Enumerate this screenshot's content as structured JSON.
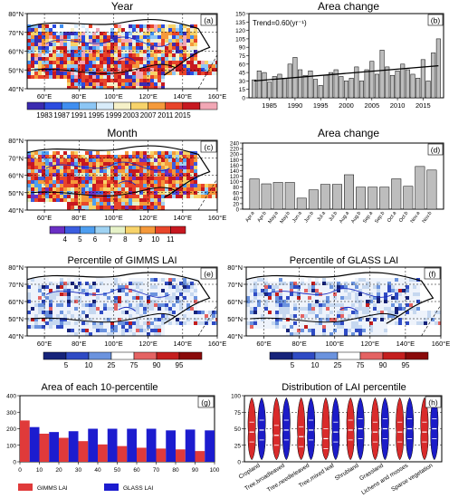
{
  "maps": {
    "lon_ticks": [
      "60°E",
      "80°E",
      "100°E",
      "120°E",
      "140°E",
      "160°E"
    ],
    "lat_ticks": [
      "80°N",
      "70°N",
      "60°N",
      "50°N",
      "40°N"
    ]
  },
  "chart_data": [
    {
      "id": "a",
      "type": "map",
      "panel_label": "(a)",
      "title": "Year",
      "colorbar_labels": [
        "1983",
        "1987",
        "1991",
        "1995",
        "1999",
        "2003",
        "2007",
        "2011",
        "2015"
      ],
      "colors": [
        "#3b2bb0",
        "#2c4ce0",
        "#3f8ef0",
        "#8cc6f5",
        "#d8ecfa",
        "#f6f1c8",
        "#f7d36a",
        "#f59a3b",
        "#e8442a",
        "#c71820",
        "#f2a7b5"
      ]
    },
    {
      "id": "b",
      "type": "bar",
      "panel_label": "(b)",
      "title": "Area change",
      "annotation": "Trend=0.60(yr⁻¹)",
      "x_start": 1982,
      "values": [
        32,
        48,
        45,
        28,
        38,
        42,
        35,
        60,
        72,
        50,
        40,
        48,
        33,
        22,
        40,
        45,
        50,
        38,
        30,
        35,
        55,
        30,
        50,
        65,
        42,
        85,
        55,
        40,
        48,
        60,
        50,
        42,
        35,
        68,
        30,
        80,
        105
      ],
      "trend": [
        30,
        57
      ],
      "ylim": [
        0,
        150
      ],
      "yticks": [
        0,
        15,
        30,
        45,
        60,
        75,
        90,
        105,
        120,
        135,
        150
      ],
      "xticks": [
        1985,
        1990,
        1995,
        2000,
        2005,
        2010,
        2015
      ]
    },
    {
      "id": "c",
      "type": "map",
      "panel_label": "(c)",
      "title": "Month",
      "colorbar_labels": [
        "4",
        "5",
        "6",
        "7",
        "8",
        "9",
        "10",
        "11"
      ],
      "colors": [
        "#6a2fc4",
        "#3b5de0",
        "#4d9ef0",
        "#9fd2f2",
        "#e6f2c8",
        "#f7d36a",
        "#f5993a",
        "#e8452a",
        "#c71820"
      ]
    },
    {
      "id": "d",
      "type": "bar",
      "panel_label": "(d)",
      "title": "Area change",
      "categories": [
        "Apr.a",
        "Apr.b",
        "May.a",
        "May.b",
        "Jun.a",
        "Jun.b",
        "Jul.a",
        "Jul.b",
        "Aug.a",
        "Aug.b",
        "Sep.a",
        "Sep.b",
        "Oct.a",
        "Oct.b",
        "Nov.a",
        "Nov.b"
      ],
      "values": [
        110,
        92,
        97,
        97,
        40,
        70,
        90,
        90,
        125,
        80,
        80,
        80,
        110,
        83,
        155,
        142
      ],
      "ylim": [
        0,
        240
      ],
      "yticks": [
        0,
        20,
        40,
        60,
        80,
        100,
        120,
        140,
        160,
        180,
        200,
        220,
        240
      ]
    },
    {
      "id": "e",
      "type": "map",
      "panel_label": "(e)",
      "title": "Percentile of GIMMS LAI",
      "colorbar_labels": [
        "5",
        "10",
        "25",
        "75",
        "90",
        "95"
      ],
      "colors": [
        "#16237a",
        "#2f4bc4",
        "#6b93de",
        "#ffffff",
        "#e46363",
        "#c41e1e",
        "#8a0a0a"
      ]
    },
    {
      "id": "f",
      "type": "map",
      "panel_label": "(f)",
      "title": "Percentile of GLASS LAI",
      "colorbar_labels": [
        "5",
        "10",
        "25",
        "75",
        "90",
        "95"
      ],
      "colors": [
        "#16237a",
        "#2f4bc4",
        "#6b93de",
        "#ffffff",
        "#e46363",
        "#c41e1e",
        "#8a0a0a"
      ]
    },
    {
      "id": "g",
      "type": "bar",
      "panel_label": "(g)",
      "title": "Area of each 10-percentile",
      "xticks": [
        0,
        10,
        20,
        30,
        40,
        50,
        60,
        70,
        80,
        90,
        100
      ],
      "ylim": [
        0,
        400
      ],
      "yticks": [
        0,
        100,
        200,
        300,
        400
      ],
      "series": [
        {
          "name": "GIMMS LAI",
          "color": "#e03a3a",
          "values": [
            250,
            170,
            145,
            125,
            105,
            95,
            85,
            80,
            75,
            65
          ]
        },
        {
          "name": "GLASS LAI",
          "color": "#1c1ccf",
          "values": [
            210,
            180,
            185,
            200,
            200,
            200,
            200,
            190,
            195,
            190
          ]
        }
      ]
    },
    {
      "id": "h",
      "type": "violin",
      "panel_label": "(h)",
      "title": "Distribution of LAI percentile",
      "categories": [
        "Cropland",
        "Tree,broadleaved",
        "Tree,needleleaved",
        "Tree,mixed leaf",
        "Shrubland",
        "Grassland",
        "Lichens and mosses",
        "Sparse vegetation"
      ],
      "ylim": [
        0,
        100
      ],
      "yticks": [
        0,
        25,
        50,
        75,
        100
      ],
      "series_colors": [
        "#d92b2b",
        "#1c1cc8"
      ],
      "medians": [
        [
          45,
          48
        ],
        [
          40,
          48
        ],
        [
          38,
          48
        ],
        [
          35,
          45
        ],
        [
          48,
          50
        ],
        [
          45,
          50
        ],
        [
          45,
          50
        ],
        [
          45,
          50
        ]
      ]
    }
  ]
}
